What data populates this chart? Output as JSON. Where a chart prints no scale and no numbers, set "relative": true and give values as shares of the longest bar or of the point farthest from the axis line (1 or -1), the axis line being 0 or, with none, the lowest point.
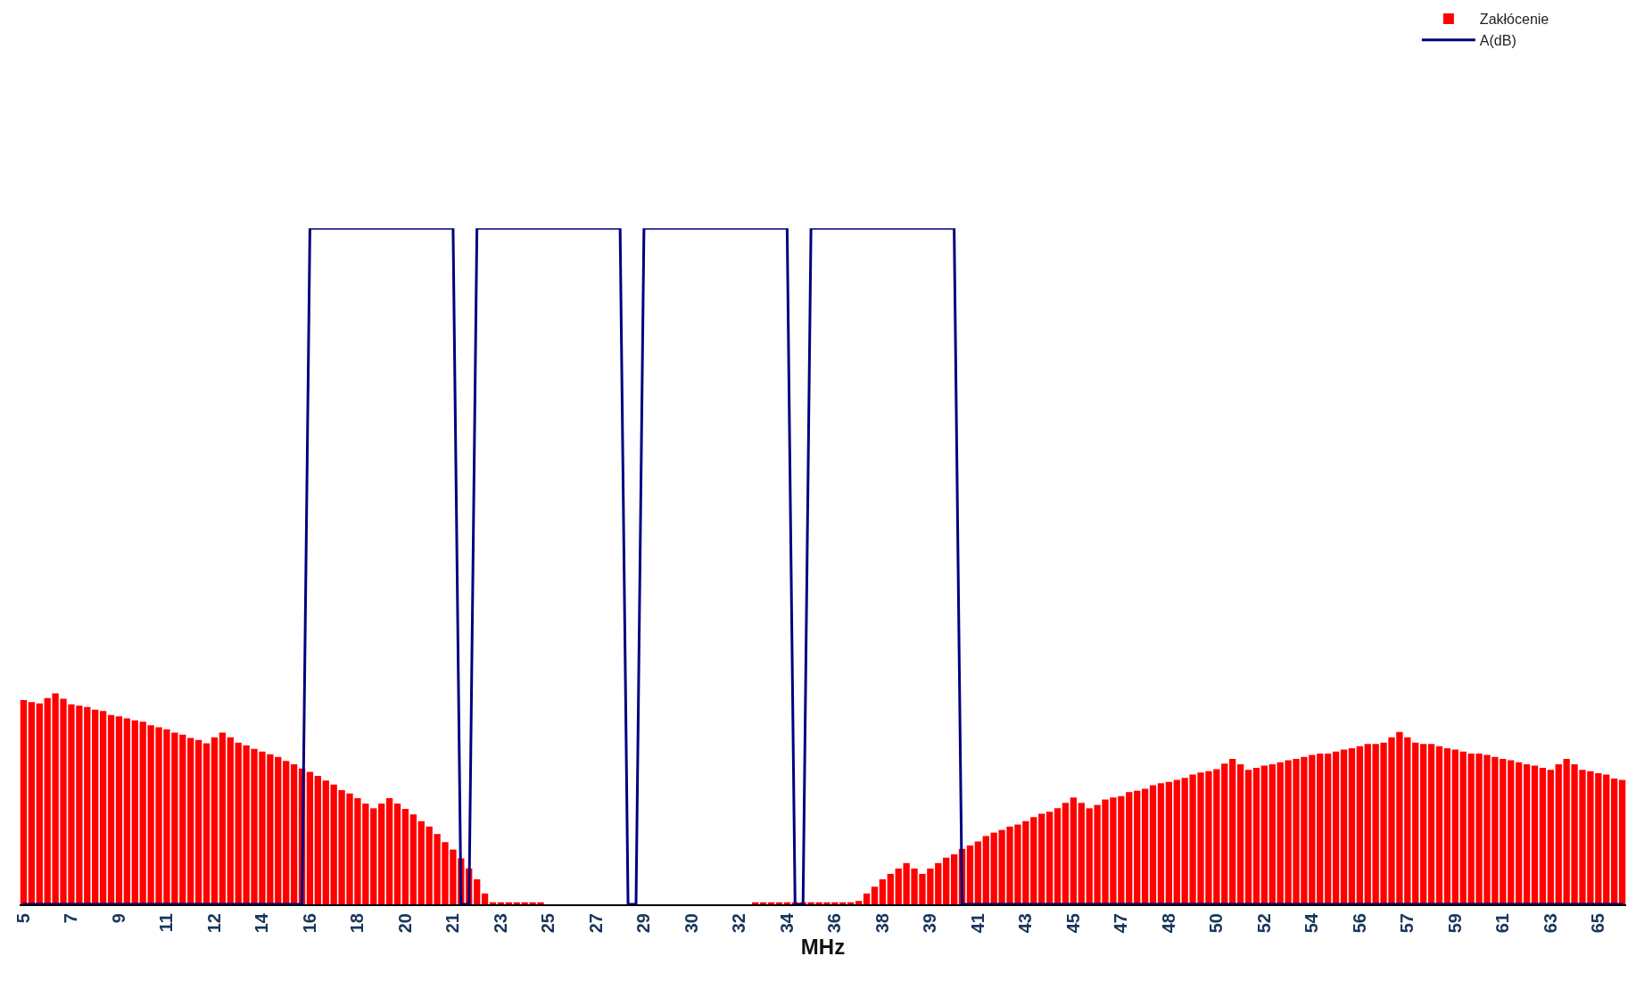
{
  "chart_data": {
    "type": "bar",
    "relative": true,
    "xlabel": "MHz",
    "legend": "top right",
    "categories": [
      "5",
      null,
      null,
      null,
      null,
      null,
      "7",
      null,
      null,
      null,
      null,
      null,
      "9",
      null,
      null,
      null,
      null,
      null,
      "11",
      null,
      null,
      null,
      null,
      null,
      "12",
      null,
      null,
      null,
      null,
      null,
      "14",
      null,
      null,
      null,
      null,
      null,
      "16",
      null,
      null,
      null,
      null,
      null,
      "18",
      null,
      null,
      null,
      null,
      null,
      "20",
      null,
      null,
      null,
      null,
      null,
      "21",
      null,
      null,
      null,
      null,
      null,
      "23",
      null,
      null,
      null,
      null,
      null,
      "25",
      null,
      null,
      null,
      null,
      null,
      "27",
      null,
      null,
      null,
      null,
      null,
      "29",
      null,
      null,
      null,
      null,
      null,
      "30",
      null,
      null,
      null,
      null,
      null,
      "32",
      null,
      null,
      null,
      null,
      null,
      "34",
      null,
      null,
      null,
      null,
      null,
      "36",
      null,
      null,
      null,
      null,
      null,
      "38",
      null,
      null,
      null,
      null,
      null,
      "39",
      null,
      null,
      null,
      null,
      null,
      "41",
      null,
      null,
      null,
      null,
      null,
      "43",
      null,
      null,
      null,
      null,
      null,
      "45",
      null,
      null,
      null,
      null,
      null,
      "47",
      null,
      null,
      null,
      null,
      null,
      "48",
      null,
      null,
      null,
      null,
      null,
      "50",
      null,
      null,
      null,
      null,
      null,
      "52",
      null,
      null,
      null,
      null,
      null,
      "54",
      null,
      null,
      null,
      null,
      null,
      "56",
      null,
      null,
      null,
      null,
      null,
      "57",
      null,
      null,
      null,
      null,
      null,
      "59",
      null,
      null,
      null,
      null,
      null,
      "61",
      null,
      null,
      null,
      null,
      null,
      "63",
      null,
      null,
      null,
      null,
      null,
      "65",
      null,
      null,
      null
    ],
    "series": [
      {
        "name": "Zakłócenie",
        "color": "#ff0000",
        "values": [
          0.302,
          0.299,
          0.297,
          0.305,
          0.312,
          0.304,
          0.296,
          0.294,
          0.292,
          0.288,
          0.286,
          0.28,
          0.278,
          0.275,
          0.272,
          0.27,
          0.265,
          0.262,
          0.259,
          0.254,
          0.251,
          0.246,
          0.243,
          0.238,
          0.247,
          0.254,
          0.247,
          0.239,
          0.235,
          0.23,
          0.226,
          0.222,
          0.218,
          0.212,
          0.207,
          0.201,
          0.196,
          0.19,
          0.183,
          0.177,
          0.169,
          0.164,
          0.157,
          0.149,
          0.142,
          0.149,
          0.157,
          0.149,
          0.141,
          0.133,
          0.123,
          0.115,
          0.104,
          0.092,
          0.081,
          0.068,
          0.053,
          0.037,
          0.016,
          0.003,
          0.003,
          0.003,
          0.003,
          0.003,
          0.003,
          0.003,
          0,
          0,
          0,
          0,
          0,
          0,
          0,
          0,
          0,
          0,
          0,
          0,
          0,
          0,
          0,
          0,
          0,
          0,
          0,
          0,
          0,
          0,
          0,
          0,
          0,
          0,
          0.003,
          0.003,
          0.003,
          0.003,
          0.003,
          0.003,
          0.003,
          0.003,
          0.003,
          0.003,
          0.003,
          0.003,
          0.003,
          0.005,
          0.016,
          0.026,
          0.037,
          0.045,
          0.053,
          0.061,
          0.053,
          0.045,
          0.053,
          0.061,
          0.069,
          0.074,
          0.082,
          0.087,
          0.093,
          0.101,
          0.106,
          0.11,
          0.115,
          0.118,
          0.123,
          0.129,
          0.134,
          0.137,
          0.142,
          0.15,
          0.158,
          0.15,
          0.142,
          0.147,
          0.155,
          0.158,
          0.16,
          0.166,
          0.168,
          0.171,
          0.176,
          0.179,
          0.181,
          0.184,
          0.187,
          0.192,
          0.195,
          0.197,
          0.2,
          0.208,
          0.215,
          0.207,
          0.199,
          0.202,
          0.205,
          0.207,
          0.21,
          0.213,
          0.215,
          0.218,
          0.221,
          0.223,
          0.223,
          0.226,
          0.229,
          0.231,
          0.234,
          0.237,
          0.237,
          0.239,
          0.247,
          0.255,
          0.247,
          0.239,
          0.237,
          0.237,
          0.234,
          0.231,
          0.229,
          0.226,
          0.223,
          0.223,
          0.221,
          0.218,
          0.215,
          0.213,
          0.21,
          0.207,
          0.205,
          0.202,
          0.199,
          0.207,
          0.215,
          0.207,
          0.199,
          0.197,
          0.194,
          0.192,
          0.186,
          0.184
        ]
      },
      {
        "name": "A(dB)",
        "type": "line",
        "color": "#000080",
        "values": [
          0,
          0,
          0,
          0,
          0,
          0,
          0,
          0,
          0,
          0,
          0,
          0,
          0,
          0,
          0,
          0,
          0,
          0,
          0,
          0,
          0,
          0,
          0,
          0,
          0,
          0,
          0,
          0,
          0,
          0,
          0,
          0,
          0,
          0,
          0,
          0,
          1,
          1,
          1,
          1,
          1,
          1,
          1,
          1,
          1,
          1,
          1,
          1,
          1,
          1,
          1,
          1,
          1,
          1,
          1,
          0,
          0,
          1,
          1,
          1,
          1,
          1,
          1,
          1,
          1,
          1,
          1,
          1,
          1,
          1,
          1,
          1,
          1,
          1,
          1,
          1,
          0,
          0,
          1,
          1,
          1,
          1,
          1,
          1,
          1,
          1,
          1,
          1,
          1,
          1,
          1,
          1,
          1,
          1,
          1,
          1,
          1,
          0,
          0,
          1,
          1,
          1,
          1,
          1,
          1,
          1,
          1,
          1,
          1,
          1,
          1,
          1,
          1,
          1,
          1,
          1,
          1,
          1,
          0,
          0,
          0,
          0,
          0,
          0,
          0,
          0,
          0,
          0,
          0,
          0,
          0,
          0,
          0,
          0,
          0,
          0,
          0,
          0,
          0,
          0,
          0,
          0,
          0,
          0,
          0,
          0,
          0,
          0,
          0,
          0,
          0,
          0,
          0,
          0,
          0,
          0,
          0,
          0,
          0,
          0,
          0,
          0,
          0,
          0,
          0,
          0,
          0,
          0,
          0,
          0,
          0,
          0,
          0,
          0,
          0,
          0,
          0,
          0,
          0,
          0,
          0,
          0,
          0,
          0,
          0,
          0,
          0,
          0,
          0,
          0,
          0,
          0,
          0,
          0,
          0,
          0,
          0,
          0,
          0,
          0,
          0,
          0
        ]
      }
    ]
  }
}
